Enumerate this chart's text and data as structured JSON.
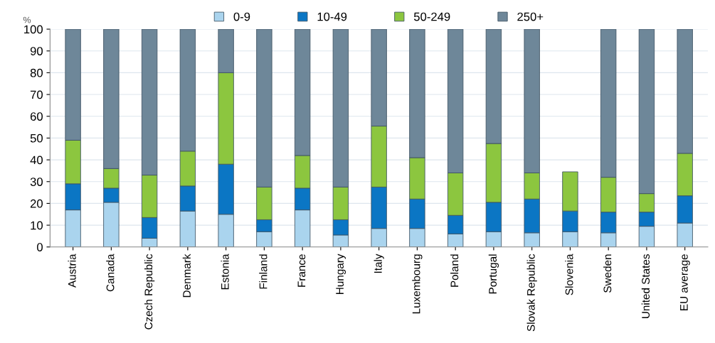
{
  "chart_data": {
    "type": "bar",
    "stacked": true,
    "ylabel": "%",
    "categories": [
      "Austria",
      "Canada",
      "Czech Republic",
      "Denmark",
      "Estonia",
      "Finland",
      "France",
      "Hungary",
      "Italy",
      "Luxembourg",
      "Poland",
      "Portugal",
      "Slovak Republic",
      "Slovenia",
      "Sweden",
      "United States",
      "EU average"
    ],
    "series": [
      {
        "name": "0-9",
        "color": "#aad4ee",
        "values": [
          17,
          20.5,
          4,
          16.5,
          15,
          7,
          17,
          5.5,
          8.5,
          8.5,
          6,
          7,
          6.5,
          7,
          6.5,
          9.5,
          11
        ]
      },
      {
        "name": "10-49",
        "color": "#0b76c4",
        "values": [
          12,
          6.5,
          9.5,
          11.5,
          23,
          5.5,
          10,
          7,
          19,
          13.5,
          8.5,
          13.5,
          15.5,
          9.5,
          9.5,
          6.5,
          12.5
        ]
      },
      {
        "name": "50-249",
        "color": "#8cc63f",
        "values": [
          20,
          9,
          19.5,
          16,
          42,
          15,
          15,
          15,
          28,
          19,
          19.5,
          27,
          12,
          18,
          16,
          8.5,
          19.5
        ]
      },
      {
        "name": "250+",
        "color": "#6e8799",
        "values": [
          51,
          64,
          67,
          56,
          20,
          72.5,
          58,
          72.5,
          44.5,
          59,
          66,
          52.5,
          66,
          null,
          68,
          75.5,
          57
        ]
      }
    ],
    "ylim": [
      0,
      100
    ],
    "yticks": [
      0,
      10,
      20,
      30,
      40,
      50,
      60,
      70,
      80,
      90,
      100
    ],
    "grid": "y",
    "legend": "top"
  }
}
